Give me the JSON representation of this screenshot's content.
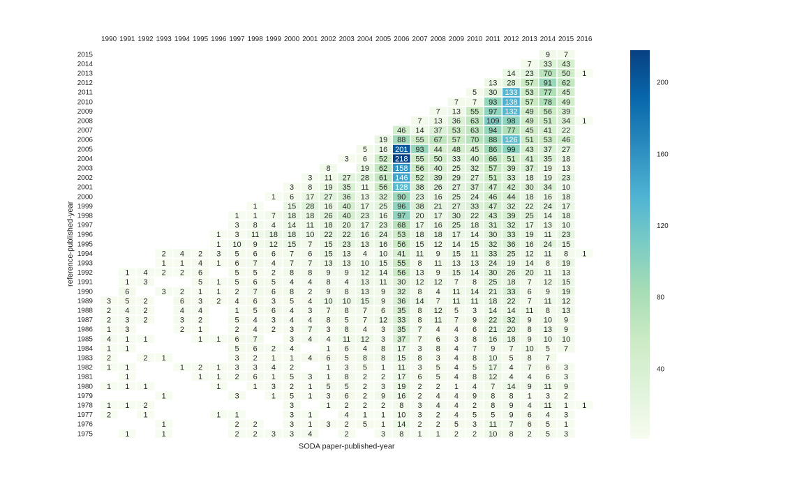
{
  "chart_data": {
    "type": "heatmap",
    "title": "",
    "xlabel": "SODA paper-published-year",
    "ylabel": "reference-published-year",
    "x_axis_position": "top",
    "x": [
      "1990",
      "1991",
      "1992",
      "1993",
      "1994",
      "1995",
      "1996",
      "1997",
      "1998",
      "1999",
      "2000",
      "2001",
      "2002",
      "2003",
      "2004",
      "2005",
      "2006",
      "2007",
      "2008",
      "2009",
      "2010",
      "2011",
      "2012",
      "2013",
      "2014",
      "2015",
      "2016"
    ],
    "y": [
      "2015",
      "2014",
      "2013",
      "2012",
      "2011",
      "2010",
      "2009",
      "2008",
      "2007",
      "2006",
      "2005",
      "2004",
      "2003",
      "2002",
      "2001",
      "2000",
      "1999",
      "1998",
      "1997",
      "1996",
      "1995",
      "1994",
      "1993",
      "1992",
      "1991",
      "1990",
      "1989",
      "1988",
      "1987",
      "1986",
      "1985",
      "1984",
      "1983",
      "1982",
      "1981",
      "1980",
      "1979",
      "1978",
      "1977",
      "1976",
      "1975"
    ],
    "rows": {
      "2015": {
        "2014": 9,
        "2015": 7
      },
      "2014": {
        "2013": 7,
        "2014": 33,
        "2015": 43
      },
      "2013": {
        "2012": 14,
        "2013": 23,
        "2014": 70,
        "2015": 50,
        "2016": 1
      },
      "2012": {
        "2011": 13,
        "2012": 28,
        "2013": 57,
        "2014": 91,
        "2015": 62
      },
      "2011": {
        "2010": 5,
        "2011": 30,
        "2012": 133,
        "2013": 53,
        "2014": 77,
        "2015": 45
      },
      "2010": {
        "2009": 7,
        "2010": 7,
        "2011": 93,
        "2012": 138,
        "2013": 57,
        "2014": 78,
        "2015": 49
      },
      "2009": {
        "2008": 7,
        "2009": 13,
        "2010": 55,
        "2011": 97,
        "2012": 132,
        "2013": 49,
        "2014": 56,
        "2015": 39
      },
      "2008": {
        "2007": 7,
        "2008": 13,
        "2009": 36,
        "2010": 63,
        "2011": 109,
        "2012": 98,
        "2013": 49,
        "2014": 51,
        "2015": 34,
        "2016": 1
      },
      "2007": {
        "2006": 46,
        "2007": 14,
        "2008": 37,
        "2009": 53,
        "2010": 63,
        "2011": 94,
        "2012": 77,
        "2013": 45,
        "2014": 41,
        "2015": 22
      },
      "2006": {
        "2005": 19,
        "2006": 88,
        "2007": 55,
        "2008": 67,
        "2009": 57,
        "2010": 70,
        "2011": 88,
        "2012": 126,
        "2013": 51,
        "2014": 53,
        "2015": 46
      },
      "2005": {
        "2004": 5,
        "2005": 16,
        "2006": 201,
        "2007": 93,
        "2008": 44,
        "2009": 48,
        "2010": 45,
        "2011": 86,
        "2012": 99,
        "2013": 43,
        "2014": 37,
        "2015": 27
      },
      "2004": {
        "2003": 3,
        "2004": 6,
        "2005": 52,
        "2006": 218,
        "2007": 55,
        "2008": 50,
        "2009": 33,
        "2010": 40,
        "2011": 66,
        "2012": 51,
        "2013": 41,
        "2014": 35,
        "2015": 18
      },
      "2003": {
        "2002": 8,
        "2004": 19,
        "2005": 62,
        "2006": 158,
        "2007": 56,
        "2008": 40,
        "2009": 25,
        "2010": 32,
        "2011": 57,
        "2012": 39,
        "2013": 37,
        "2014": 19,
        "2015": 13
      },
      "2002": {
        "2001": 3,
        "2002": 11,
        "2003": 27,
        "2004": 28,
        "2005": 61,
        "2006": 146,
        "2007": 52,
        "2008": 39,
        "2009": 29,
        "2010": 27,
        "2011": 51,
        "2012": 33,
        "2013": 18,
        "2014": 19,
        "2015": 23
      },
      "2001": {
        "2000": 3,
        "2001": 8,
        "2002": 19,
        "2003": 35,
        "2004": 11,
        "2005": 56,
        "2006": 128,
        "2007": 38,
        "2008": 26,
        "2009": 27,
        "2010": 37,
        "2011": 47,
        "2012": 42,
        "2013": 30,
        "2014": 34,
        "2015": 10
      },
      "2000": {
        "1999": 1,
        "2000": 6,
        "2001": 17,
        "2002": 27,
        "2003": 36,
        "2004": 13,
        "2005": 32,
        "2006": 90,
        "2007": 23,
        "2008": 16,
        "2009": 25,
        "2010": 24,
        "2011": 46,
        "2012": 44,
        "2013": 18,
        "2014": 16,
        "2015": 18
      },
      "1999": {
        "1998": 1,
        "2000": 15,
        "2001": 28,
        "2002": 16,
        "2003": 40,
        "2004": 17,
        "2005": 25,
        "2006": 96,
        "2007": 38,
        "2008": 21,
        "2009": 27,
        "2010": 33,
        "2011": 47,
        "2012": 32,
        "2013": 22,
        "2014": 24,
        "2015": 17
      },
      "1998": {
        "1997": 1,
        "1998": 1,
        "1999": 7,
        "2000": 18,
        "2001": 18,
        "2002": 26,
        "2003": 40,
        "2004": 23,
        "2005": 16,
        "2006": 97,
        "2007": 20,
        "2008": 17,
        "2009": 30,
        "2010": 22,
        "2011": 43,
        "2012": 39,
        "2013": 25,
        "2014": 14,
        "2015": 18
      },
      "1997": {
        "1997": 3,
        "1998": 8,
        "1999": 4,
        "2000": 14,
        "2001": 11,
        "2002": 18,
        "2003": 20,
        "2004": 17,
        "2005": 23,
        "2006": 68,
        "2007": 17,
        "2008": 16,
        "2009": 25,
        "2010": 18,
        "2011": 31,
        "2012": 32,
        "2013": 17,
        "2014": 13,
        "2015": 10
      },
      "1996": {
        "1996": 1,
        "1997": 3,
        "1998": 11,
        "1999": 18,
        "2000": 18,
        "2001": 10,
        "2002": 22,
        "2003": 22,
        "2004": 16,
        "2005": 24,
        "2006": 53,
        "2007": 18,
        "2008": 18,
        "2009": 17,
        "2010": 14,
        "2011": 30,
        "2012": 33,
        "2013": 19,
        "2014": 11,
        "2015": 23
      },
      "1995": {
        "1996": 1,
        "1997": 10,
        "1998": 9,
        "1999": 12,
        "2000": 15,
        "2001": 7,
        "2002": 15,
        "2003": 23,
        "2004": 13,
        "2005": 16,
        "2006": 56,
        "2007": 15,
        "2008": 12,
        "2009": 14,
        "2010": 15,
        "2011": 32,
        "2012": 36,
        "2013": 16,
        "2014": 24,
        "2015": 15
      },
      "1994": {
        "1993": 2,
        "1994": 4,
        "1995": 2,
        "1996": 3,
        "1997": 5,
        "1998": 6,
        "1999": 6,
        "2000": 7,
        "2001": 6,
        "2002": 15,
        "2003": 13,
        "2004": 4,
        "2005": 10,
        "2006": 41,
        "2007": 11,
        "2008": 9,
        "2009": 15,
        "2010": 11,
        "2011": 33,
        "2012": 25,
        "2013": 12,
        "2014": 11,
        "2015": 8,
        "2016": 1
      },
      "1993": {
        "1993": 1,
        "1994": 1,
        "1995": 4,
        "1996": 1,
        "1997": 6,
        "1998": 7,
        "1999": 4,
        "2000": 7,
        "2001": 7,
        "2002": 13,
        "2003": 13,
        "2004": 10,
        "2005": 15,
        "2006": 55,
        "2007": 8,
        "2008": 11,
        "2009": 13,
        "2010": 13,
        "2011": 24,
        "2012": 19,
        "2013": 14,
        "2014": 8,
        "2015": 19
      },
      "1992": {
        "1991": 1,
        "1992": 4,
        "1993": 2,
        "1994": 2,
        "1995": 6,
        "1997": 5,
        "1998": 5,
        "1999": 2,
        "2000": 8,
        "2001": 8,
        "2002": 9,
        "2003": 9,
        "2004": 12,
        "2005": 14,
        "2006": 56,
        "2007": 13,
        "2008": 9,
        "2009": 15,
        "2010": 14,
        "2011": 30,
        "2012": 26,
        "2013": 20,
        "2014": 11,
        "2015": 13
      },
      "1991": {
        "1991": 1,
        "1992": 3,
        "1995": 5,
        "1996": 1,
        "1997": 5,
        "1998": 6,
        "1999": 5,
        "2000": 4,
        "2001": 4,
        "2002": 8,
        "2003": 4,
        "2004": 13,
        "2005": 11,
        "2006": 30,
        "2007": 12,
        "2008": 12,
        "2009": 7,
        "2010": 8,
        "2011": 25,
        "2012": 18,
        "2013": 7,
        "2014": 12,
        "2015": 15
      },
      "1990": {
        "1991": 6,
        "1993": 3,
        "1994": 2,
        "1995": 1,
        "1996": 1,
        "1997": 2,
        "1998": 7,
        "1999": 6,
        "2000": 8,
        "2001": 2,
        "2002": 9,
        "2003": 8,
        "2004": 13,
        "2005": 9,
        "2006": 32,
        "2007": 8,
        "2008": 4,
        "2009": 11,
        "2010": 14,
        "2011": 21,
        "2012": 33,
        "2013": 6,
        "2014": 9,
        "2015": 19
      },
      "1989": {
        "1990": 3,
        "1991": 5,
        "1992": 2,
        "1994": 6,
        "1995": 3,
        "1996": 2,
        "1997": 4,
        "1998": 6,
        "1999": 3,
        "2000": 5,
        "2001": 4,
        "2002": 10,
        "2003": 10,
        "2004": 15,
        "2005": 9,
        "2006": 36,
        "2007": 14,
        "2008": 7,
        "2009": 11,
        "2010": 11,
        "2011": 18,
        "2012": 22,
        "2013": 7,
        "2014": 11,
        "2015": 12
      },
      "1988": {
        "1990": 2,
        "1991": 4,
        "1992": 2,
        "1994": 4,
        "1995": 4,
        "1997": 1,
        "1998": 5,
        "1999": 6,
        "2000": 4,
        "2001": 3,
        "2002": 7,
        "2003": 8,
        "2004": 7,
        "2005": 6,
        "2006": 35,
        "2007": 8,
        "2008": 12,
        "2009": 5,
        "2010": 3,
        "2011": 14,
        "2012": 14,
        "2013": 11,
        "2014": 8,
        "2015": 13
      },
      "1987": {
        "1990": 2,
        "1991": 3,
        "1992": 2,
        "1994": 3,
        "1995": 2,
        "1997": 5,
        "1998": 4,
        "1999": 3,
        "2000": 4,
        "2001": 4,
        "2002": 8,
        "2003": 5,
        "2004": 7,
        "2005": 12,
        "2006": 33,
        "2007": 8,
        "2008": 11,
        "2009": 7,
        "2010": 9,
        "2011": 22,
        "2012": 32,
        "2013": 9,
        "2014": 10,
        "2015": 9
      },
      "1986": {
        "1990": 1,
        "1991": 3,
        "1994": 2,
        "1995": 1,
        "1997": 2,
        "1998": 4,
        "1999": 2,
        "2000": 3,
        "2001": 7,
        "2002": 3,
        "2003": 8,
        "2004": 4,
        "2005": 3,
        "2006": 35,
        "2007": 7,
        "2008": 4,
        "2009": 4,
        "2010": 6,
        "2011": 21,
        "2012": 20,
        "2013": 8,
        "2014": 13,
        "2015": 9
      },
      "1985": {
        "1990": 4,
        "1991": 1,
        "1992": 1,
        "1995": 1,
        "1996": 1,
        "1997": 6,
        "1998": 7,
        "2000": 3,
        "2001": 4,
        "2002": 4,
        "2003": 11,
        "2004": 12,
        "2005": 3,
        "2006": 37,
        "2007": 7,
        "2008": 6,
        "2009": 3,
        "2010": 8,
        "2011": 16,
        "2012": 18,
        "2013": 9,
        "2014": 10,
        "2015": 10
      },
      "1984": {
        "1990": 1,
        "1991": 1,
        "1997": 5,
        "1998": 6,
        "1999": 2,
        "2000": 4,
        "2002": 1,
        "2003": 6,
        "2004": 4,
        "2005": 8,
        "2006": 17,
        "2007": 3,
        "2008": 8,
        "2009": 4,
        "2010": 7,
        "2011": 9,
        "2012": 7,
        "2013": 10,
        "2014": 5,
        "2015": 7
      },
      "1983": {
        "1990": 2,
        "1992": 2,
        "1993": 1,
        "1997": 3,
        "1998": 2,
        "1999": 1,
        "2000": 1,
        "2001": 4,
        "2002": 6,
        "2003": 5,
        "2004": 8,
        "2005": 8,
        "2006": 15,
        "2007": 8,
        "2008": 3,
        "2009": 4,
        "2010": 8,
        "2011": 10,
        "2012": 5,
        "2013": 8,
        "2014": 7
      },
      "1982": {
        "1990": 1,
        "1991": 1,
        "1994": 1,
        "1995": 2,
        "1996": 1,
        "1997": 3,
        "1998": 3,
        "1999": 4,
        "2000": 2,
        "2002": 1,
        "2003": 3,
        "2004": 5,
        "2005": 1,
        "2006": 11,
        "2007": 3,
        "2008": 5,
        "2009": 4,
        "2010": 5,
        "2011": 17,
        "2012": 4,
        "2013": 7,
        "2014": 6,
        "2015": 3
      },
      "1981": {
        "1991": 1,
        "1995": 1,
        "1996": 1,
        "1997": 2,
        "1998": 6,
        "1999": 1,
        "2000": 5,
        "2001": 3,
        "2002": 1,
        "2003": 8,
        "2004": 2,
        "2005": 2,
        "2006": 17,
        "2007": 6,
        "2008": 5,
        "2009": 4,
        "2010": 8,
        "2011": 12,
        "2012": 4,
        "2013": 4,
        "2014": 6,
        "2015": 3
      },
      "1980": {
        "1990": 1,
        "1991": 1,
        "1992": 1,
        "1996": 1,
        "1998": 1,
        "1999": 3,
        "2000": 2,
        "2001": 1,
        "2002": 5,
        "2003": 5,
        "2004": 2,
        "2005": 3,
        "2006": 19,
        "2007": 2,
        "2008": 2,
        "2009": 1,
        "2010": 4,
        "2011": 7,
        "2012": 14,
        "2013": 9,
        "2014": 11,
        "2015": 9
      },
      "1979": {
        "1993": 1,
        "1997": 3,
        "1999": 1,
        "2000": 5,
        "2001": 1,
        "2002": 3,
        "2003": 6,
        "2004": 2,
        "2005": 9,
        "2006": 16,
        "2007": 2,
        "2008": 4,
        "2009": 4,
        "2010": 9,
        "2011": 8,
        "2012": 8,
        "2013": 1,
        "2014": 3,
        "2015": 2
      },
      "1978": {
        "1990": 1,
        "1991": 1,
        "1992": 2,
        "2000": 3,
        "2002": 1,
        "2003": 2,
        "2004": 2,
        "2005": 2,
        "2006": 8,
        "2007": 3,
        "2008": 4,
        "2009": 4,
        "2010": 2,
        "2011": 8,
        "2012": 9,
        "2013": 4,
        "2014": 11,
        "2015": 1,
        "2016": 1
      },
      "1977": {
        "1990": 2,
        "1992": 1,
        "1996": 1,
        "1997": 1,
        "2000": 3,
        "2001": 1,
        "2003": 4,
        "2004": 1,
        "2005": 1,
        "2006": 10,
        "2007": 3,
        "2008": 2,
        "2009": 4,
        "2010": 5,
        "2011": 5,
        "2012": 9,
        "2013": 6,
        "2014": 4,
        "2015": 3
      },
      "1976": {
        "1993": 1,
        "1997": 2,
        "1998": 2,
        "2000": 3,
        "2001": 1,
        "2002": 3,
        "2003": 2,
        "2004": 5,
        "2005": 1,
        "2006": 14,
        "2007": 2,
        "2008": 2,
        "2009": 5,
        "2010": 3,
        "2011": 11,
        "2012": 7,
        "2013": 6,
        "2014": 5,
        "2015": 1
      },
      "1975": {
        "1991": 1,
        "1993": 1,
        "1997": 2,
        "1998": 2,
        "1999": 3,
        "2000": 3,
        "2001": 4,
        "2003": 2,
        "2005": 3,
        "2006": 8,
        "2007": 1,
        "2008": 1,
        "2009": 2,
        "2010": 2,
        "2011": 10,
        "2012": 8,
        "2013": 2,
        "2014": 5,
        "2015": 3
      }
    },
    "colorbar": {
      "colormap": "GnBu",
      "ticks": [
        "40",
        "80",
        "120",
        "160",
        "200"
      ],
      "vmin": 1,
      "vmax": 218
    }
  }
}
